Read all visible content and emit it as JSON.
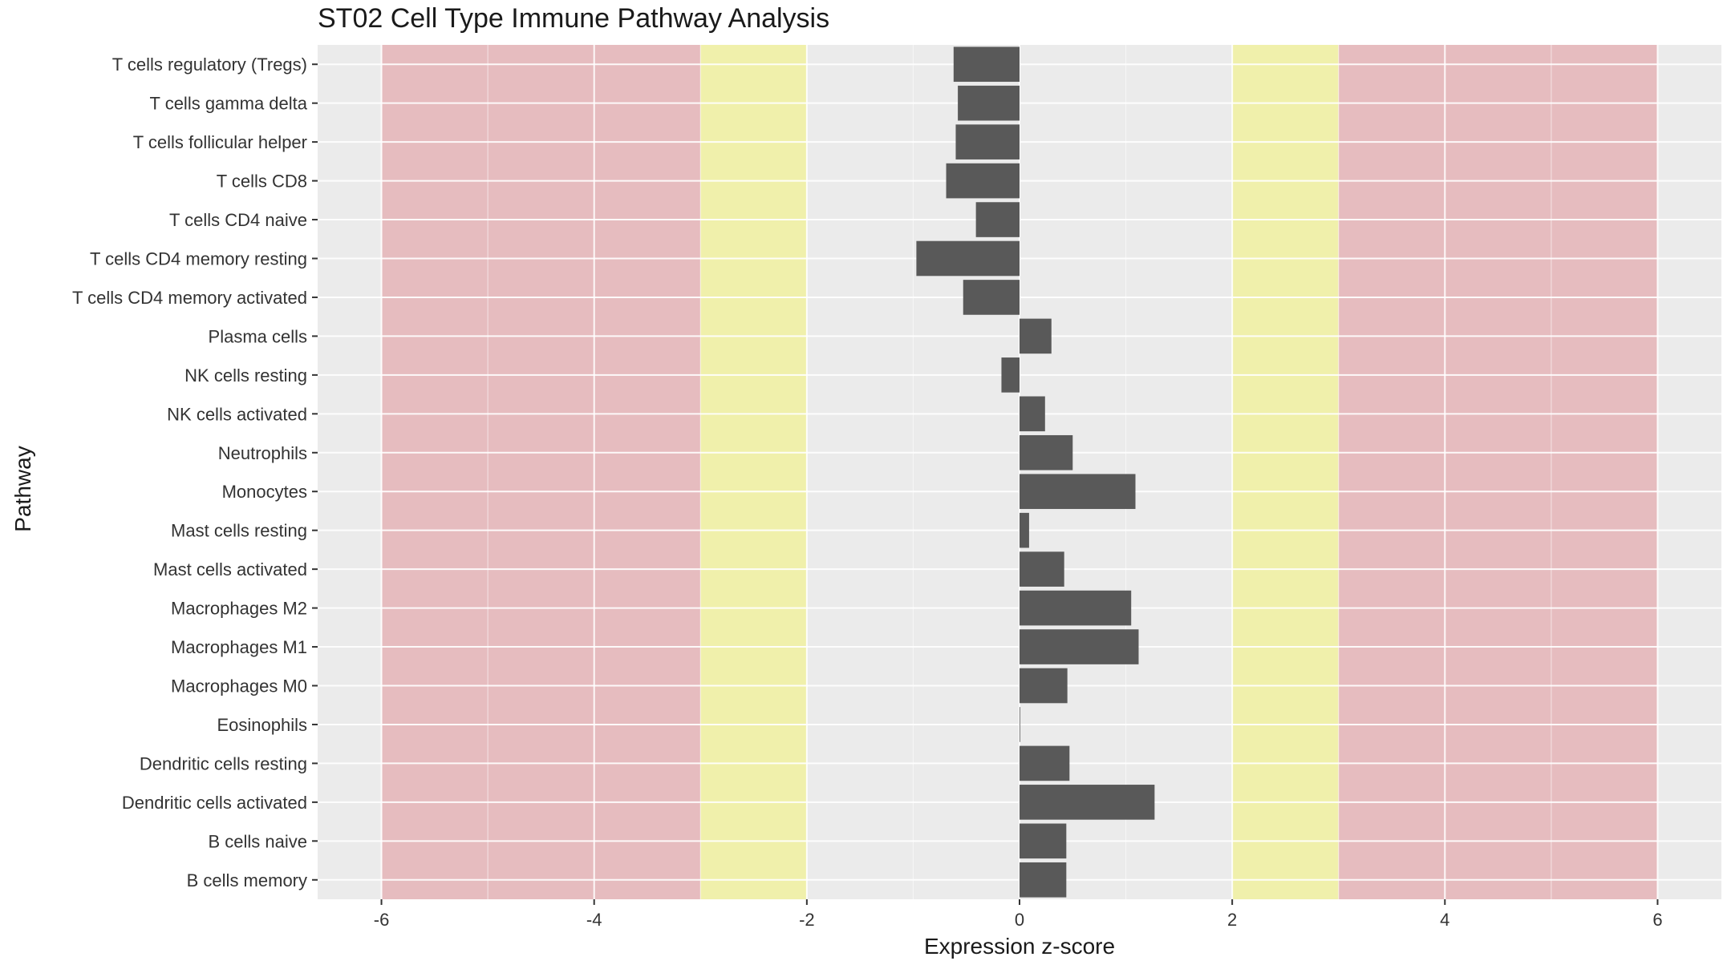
{
  "chart_data": {
    "type": "bar",
    "orientation": "horizontal",
    "title": "ST02 Cell Type Immune Pathway Analysis",
    "xlabel": "Expression z-score",
    "ylabel": "Pathway",
    "xlim": [
      -6.6,
      6.6
    ],
    "xticks": [
      -6,
      -4,
      -2,
      0,
      2,
      4,
      6
    ],
    "grid": true,
    "bar_color": "#595959",
    "panel_background": "#ebebeb",
    "bands": [
      {
        "from": -6,
        "to": -3,
        "color": "#e6bcbf"
      },
      {
        "from": -3,
        "to": -2,
        "color": "#f0f0ab"
      },
      {
        "from": 2,
        "to": 3,
        "color": "#f0f0ab"
      },
      {
        "from": 3,
        "to": 6,
        "color": "#e6bcbf"
      }
    ],
    "categories": [
      "T cells regulatory (Tregs)",
      "T cells gamma delta",
      "T cells follicular helper",
      "T cells CD8",
      "T cells CD4 naive",
      "T cells CD4 memory resting",
      "T cells CD4 memory activated",
      "Plasma cells",
      "NK cells resting",
      "NK cells activated",
      "Neutrophils",
      "Monocytes",
      "Mast cells resting",
      "Mast cells activated",
      "Macrophages M2",
      "Macrophages M1",
      "Macrophages M0",
      "Eosinophils",
      "Dendritic cells resting",
      "Dendritic cells activated",
      "B cells naive",
      "B cells memory"
    ],
    "values": [
      -0.62,
      -0.58,
      -0.6,
      -0.69,
      -0.41,
      -0.97,
      -0.53,
      0.3,
      -0.17,
      0.24,
      0.5,
      1.09,
      0.09,
      0.42,
      1.05,
      1.12,
      0.45,
      0.0,
      0.47,
      1.27,
      0.44,
      0.44
    ]
  }
}
